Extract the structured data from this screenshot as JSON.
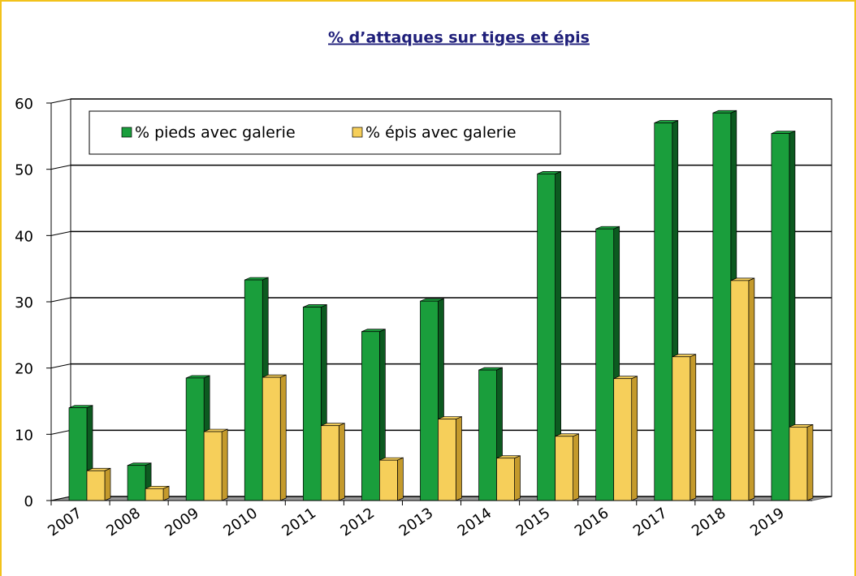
{
  "chart_data": {
    "type": "bar3d",
    "title": "% d’attaques sur tiges et épis",
    "categories": [
      "2007",
      "2008",
      "2009",
      "2010",
      "2011",
      "2012",
      "2013",
      "2014",
      "2015",
      "2016",
      "2017",
      "2018",
      "2019"
    ],
    "series": [
      {
        "name": "% pieds avec galerie",
        "color": "#1a9e3c",
        "values": [
          14,
          5.3,
          18.5,
          33.3,
          29.2,
          25.5,
          30.1,
          19.7,
          49.3,
          41,
          57,
          58.5,
          55.4
        ]
      },
      {
        "name": "% épis avec galerie",
        "color": "#f6cf5a",
        "values": [
          4.5,
          1.8,
          10.4,
          18.6,
          11.3,
          6.1,
          12.3,
          6.4,
          9.7,
          18.4,
          21.7,
          33.2,
          11.1
        ]
      }
    ],
    "ylim": [
      0,
      60
    ],
    "yticks": [
      0,
      10,
      20,
      30,
      40,
      50,
      60
    ],
    "grid": true,
    "legend": "top-left"
  }
}
